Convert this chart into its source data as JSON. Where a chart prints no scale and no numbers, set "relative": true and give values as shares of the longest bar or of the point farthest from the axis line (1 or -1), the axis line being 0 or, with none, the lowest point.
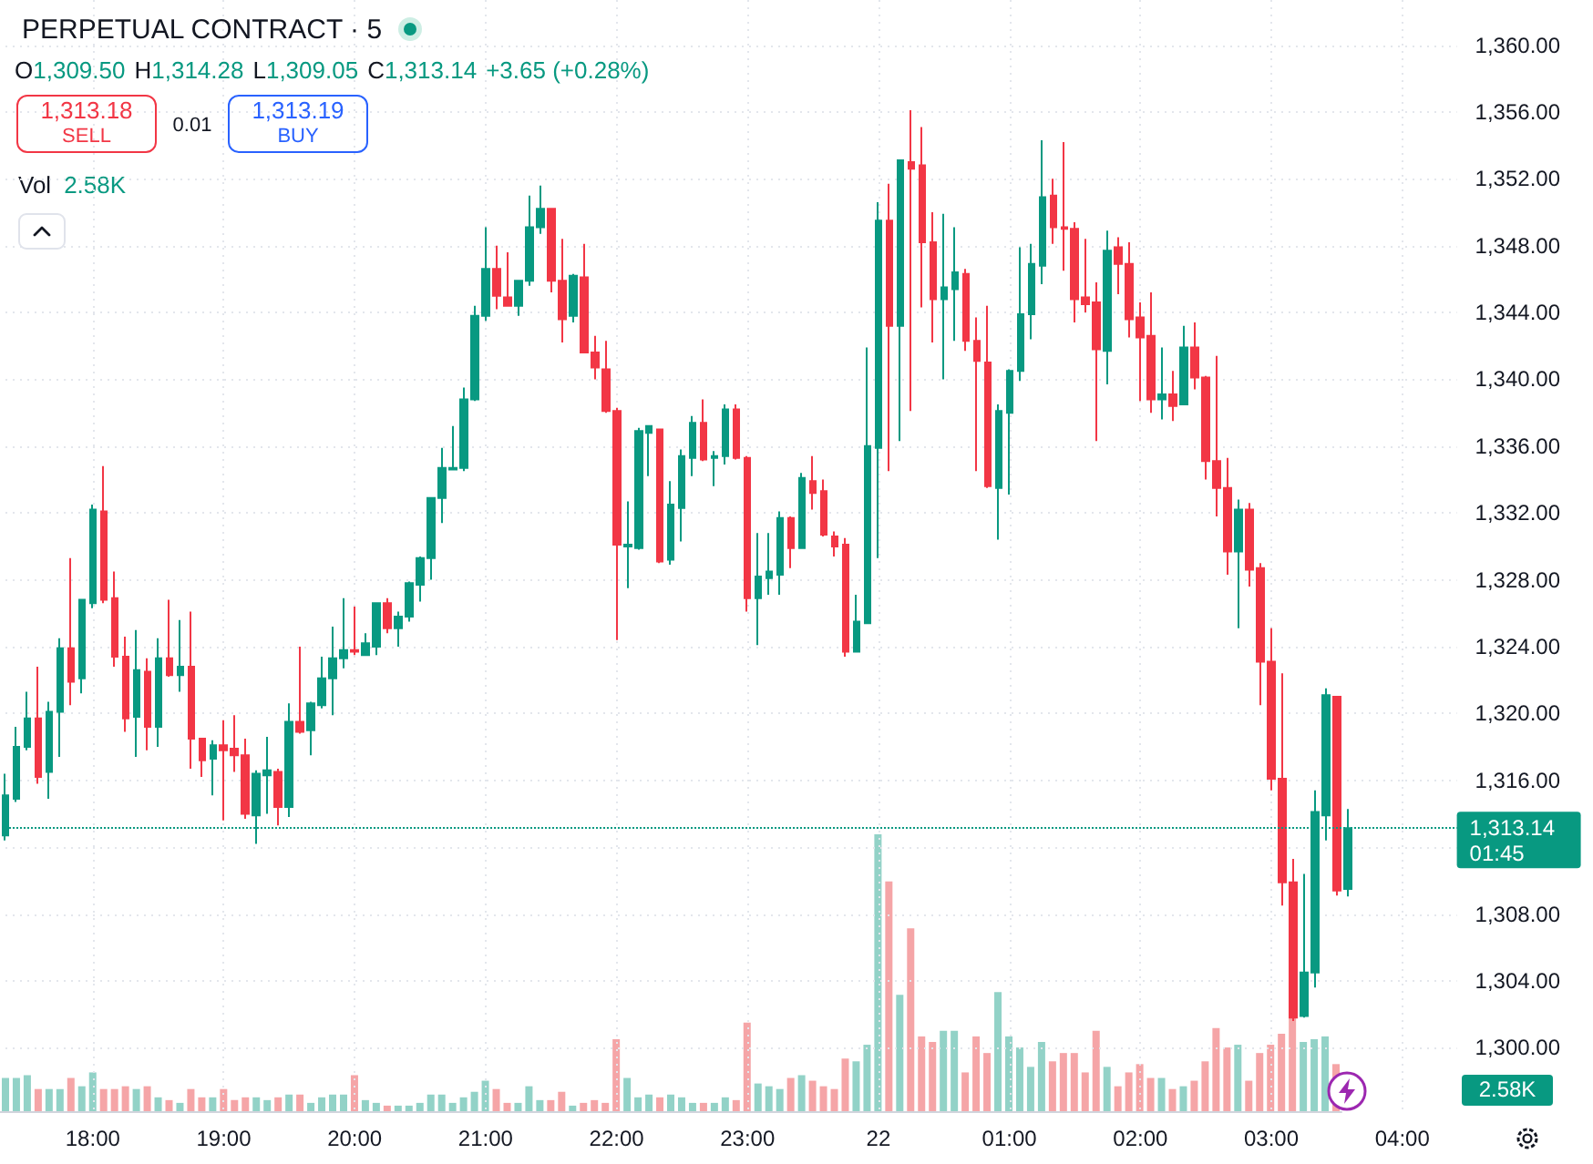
{
  "chart_data": [
    {
      "type": "candlestick",
      "title": "PERPETUAL CONTRACT · 5",
      "categories": [
        null,
        null,
        null,
        null,
        null,
        null,
        null,
        null,
        "18:00",
        null,
        null,
        null,
        null,
        null,
        null,
        null,
        null,
        null,
        null,
        null,
        "19:00",
        null,
        null,
        null,
        null,
        null,
        null,
        null,
        null,
        null,
        null,
        null,
        "20:00",
        null,
        null,
        null,
        null,
        null,
        null,
        null,
        null,
        null,
        null,
        null,
        "21:00",
        null,
        null,
        null,
        null,
        null,
        null,
        null,
        null,
        null,
        null,
        null,
        "22:00",
        null,
        null,
        null,
        null,
        null,
        null,
        null,
        null,
        null,
        null,
        null,
        "23:00",
        null,
        null,
        null,
        null,
        null,
        null,
        null,
        null,
        null,
        null,
        null,
        "22",
        null,
        null,
        null,
        null,
        null,
        null,
        null,
        null,
        null,
        null,
        null,
        "01:00",
        null,
        null,
        null,
        null,
        null,
        null,
        null,
        null,
        null,
        null,
        null,
        "02:00",
        null,
        null,
        null,
        null,
        null,
        null,
        null,
        null,
        null,
        null,
        null,
        "03:00",
        null,
        null,
        null,
        null,
        null,
        null,
        null,
        null,
        null,
        null,
        null,
        "04:00",
        null,
        null,
        null,
        null,
        null
      ],
      "ohlc": [
        [
          1312.7,
          1316.4,
          1312.4,
          1315.1
        ],
        [
          1314.9,
          1319.2,
          1314.7,
          1318.0
        ],
        [
          1318.0,
          1321.3,
          1317.8,
          1319.7
        ],
        [
          1319.7,
          1322.8,
          1315.8,
          1316.2
        ],
        [
          1316.5,
          1320.7,
          1314.9,
          1320.1
        ],
        [
          1320.1,
          1324.5,
          1317.4,
          1323.9
        ],
        [
          1323.9,
          1329.3,
          1320.5,
          1321.9
        ],
        [
          1322.1,
          1326.8,
          1321.2,
          1326.8
        ],
        [
          1326.6,
          1332.5,
          1326.3,
          1332.2
        ],
        [
          1332.1,
          1334.8,
          1326.6,
          1326.8
        ],
        [
          1326.9,
          1328.5,
          1322.8,
          1323.4
        ],
        [
          1323.4,
          1324.6,
          1318.9,
          1319.7
        ],
        [
          1319.8,
          1325.0,
          1317.4,
          1322.6
        ],
        [
          1322.5,
          1323.3,
          1317.8,
          1319.2
        ],
        [
          1319.2,
          1324.5,
          1318.0,
          1323.3
        ],
        [
          1323.3,
          1326.8,
          1322.2,
          1322.3
        ],
        [
          1322.3,
          1325.6,
          1321.3,
          1322.8
        ],
        [
          1322.8,
          1326.1,
          1316.7,
          1318.5
        ],
        [
          1318.5,
          1318.5,
          1316.2,
          1317.2
        ],
        [
          1317.3,
          1318.4,
          1315.1,
          1318.1
        ],
        [
          1318.1,
          1319.6,
          1313.6,
          1317.8
        ],
        [
          1317.9,
          1319.9,
          1316.5,
          1317.5
        ],
        [
          1317.5,
          1318.5,
          1313.7,
          1314.0
        ],
        [
          1313.9,
          1316.6,
          1312.2,
          1316.4
        ],
        [
          1316.3,
          1318.6,
          1314.0,
          1316.6
        ],
        [
          1316.5,
          1316.7,
          1313.3,
          1314.4
        ],
        [
          1314.4,
          1320.6,
          1313.8,
          1319.5
        ],
        [
          1319.5,
          1324.0,
          1318.8,
          1318.9
        ],
        [
          1319.0,
          1320.7,
          1317.5,
          1320.6
        ],
        [
          1320.5,
          1323.4,
          1320.3,
          1322.1
        ],
        [
          1322.1,
          1325.2,
          1319.9,
          1323.3
        ],
        [
          1323.3,
          1326.9,
          1322.7,
          1323.8
        ],
        [
          1323.8,
          1326.4,
          1323.5,
          1323.7
        ],
        [
          1323.5,
          1324.8,
          1323.5,
          1324.2
        ],
        [
          1324.0,
          1326.6,
          1323.5,
          1326.6
        ],
        [
          1326.6,
          1326.9,
          1324.8,
          1325.1
        ],
        [
          1325.1,
          1326.1,
          1324.0,
          1325.8
        ],
        [
          1325.8,
          1327.9,
          1325.5,
          1327.8
        ],
        [
          1327.7,
          1329.4,
          1326.7,
          1329.3
        ],
        [
          1329.3,
          1332.9,
          1328.0,
          1332.9
        ],
        [
          1332.9,
          1335.9,
          1331.4,
          1334.7
        ],
        [
          1334.6,
          1337.2,
          1334.6,
          1334.7
        ],
        [
          1334.7,
          1339.5,
          1334.5,
          1338.8
        ],
        [
          1338.8,
          1344.4,
          1338.7,
          1343.8
        ],
        [
          1343.8,
          1349.1,
          1343.5,
          1346.6
        ],
        [
          1346.6,
          1348.0,
          1344.2,
          1345.0
        ],
        [
          1344.9,
          1347.6,
          1344.4,
          1344.4
        ],
        [
          1344.4,
          1345.9,
          1343.8,
          1345.9
        ],
        [
          1345.9,
          1351.0,
          1345.6,
          1349.1
        ],
        [
          1349.1,
          1351.6,
          1348.7,
          1350.2
        ],
        [
          1350.2,
          1350.2,
          1345.2,
          1345.9
        ],
        [
          1345.9,
          1348.4,
          1342.2,
          1343.6
        ],
        [
          1343.8,
          1346.3,
          1343.4,
          1346.2
        ],
        [
          1346.1,
          1348.1,
          1341.6,
          1341.6
        ],
        [
          1341.6,
          1342.6,
          1340.0,
          1340.7
        ],
        [
          1340.6,
          1342.3,
          1338.0,
          1338.1
        ],
        [
          1338.1,
          1338.3,
          1324.4,
          1330.1
        ],
        [
          1330.0,
          1332.7,
          1327.5,
          1330.1
        ],
        [
          1329.9,
          1337.1,
          1329.8,
          1336.9
        ],
        [
          1336.8,
          1337.2,
          1334.2,
          1337.2
        ],
        [
          1337.0,
          1337.0,
          1329.0,
          1329.1
        ],
        [
          1329.2,
          1333.9,
          1328.9,
          1332.5
        ],
        [
          1332.3,
          1335.8,
          1330.3,
          1335.4
        ],
        [
          1335.3,
          1337.8,
          1334.2,
          1337.4
        ],
        [
          1337.4,
          1338.8,
          1335.1,
          1335.2
        ],
        [
          1335.3,
          1335.7,
          1333.6,
          1335.4
        ],
        [
          1335.4,
          1338.5,
          1334.9,
          1338.2
        ],
        [
          1338.2,
          1338.5,
          1335.2,
          1335.3
        ],
        [
          1335.3,
          1335.4,
          1326.1,
          1326.9
        ],
        [
          1326.9,
          1330.8,
          1324.1,
          1328.2
        ],
        [
          1328.1,
          1330.8,
          1327.1,
          1328.5
        ],
        [
          1328.3,
          1332.1,
          1327.1,
          1331.7
        ],
        [
          1331.7,
          1331.8,
          1328.7,
          1329.9
        ],
        [
          1329.9,
          1334.4,
          1329.9,
          1334.1
        ],
        [
          1333.9,
          1335.4,
          1332.2,
          1333.2
        ],
        [
          1333.3,
          1334.0,
          1330.6,
          1330.7
        ],
        [
          1330.6,
          1330.9,
          1329.4,
          1330.0
        ],
        [
          1330.1,
          1330.5,
          1323.4,
          1323.7
        ],
        [
          1323.7,
          1327.1,
          1323.7,
          1325.5
        ],
        [
          1325.4,
          1341.9,
          1325.4,
          1336.0
        ],
        [
          1335.9,
          1350.6,
          1329.3,
          1349.5
        ],
        [
          1349.5,
          1351.7,
          1334.5,
          1343.2
        ],
        [
          1343.2,
          1353.1,
          1336.3,
          1353.1
        ],
        [
          1353.0,
          1356.1,
          1338.1,
          1352.6
        ],
        [
          1352.8,
          1355.1,
          1344.3,
          1348.2
        ],
        [
          1348.2,
          1350.0,
          1342.2,
          1344.8
        ],
        [
          1344.8,
          1349.9,
          1340.0,
          1345.5
        ],
        [
          1345.4,
          1349.1,
          1342.3,
          1346.4
        ],
        [
          1346.3,
          1346.6,
          1341.7,
          1342.3
        ],
        [
          1342.3,
          1343.7,
          1334.5,
          1341.1
        ],
        [
          1341.0,
          1344.4,
          1333.5,
          1333.6
        ],
        [
          1333.5,
          1338.5,
          1330.4,
          1338.1
        ],
        [
          1338.0,
          1340.6,
          1333.1,
          1340.5
        ],
        [
          1340.5,
          1347.9,
          1339.9,
          1343.9
        ],
        [
          1343.9,
          1348.1,
          1342.4,
          1346.9
        ],
        [
          1346.8,
          1354.3,
          1345.7,
          1350.9
        ],
        [
          1351.0,
          1352.0,
          1348.1,
          1349.1
        ],
        [
          1349.1,
          1354.2,
          1346.5,
          1349.0
        ],
        [
          1349.0,
          1349.4,
          1343.4,
          1344.8
        ],
        [
          1344.9,
          1348.4,
          1344.0,
          1344.5
        ],
        [
          1344.6,
          1345.8,
          1336.3,
          1341.8
        ],
        [
          1341.7,
          1348.9,
          1339.7,
          1347.7
        ],
        [
          1347.9,
          1348.5,
          1345.1,
          1346.9
        ],
        [
          1346.9,
          1348.2,
          1342.5,
          1343.6
        ],
        [
          1343.7,
          1344.6,
          1338.7,
          1342.5
        ],
        [
          1342.6,
          1345.2,
          1338.0,
          1338.8
        ],
        [
          1338.8,
          1341.9,
          1337.6,
          1339.1
        ],
        [
          1339.1,
          1340.5,
          1337.5,
          1338.4
        ],
        [
          1338.5,
          1343.2,
          1338.5,
          1341.9
        ],
        [
          1341.9,
          1343.4,
          1339.4,
          1340.1
        ],
        [
          1340.1,
          1340.2,
          1334.0,
          1335.1
        ],
        [
          1335.1,
          1341.4,
          1331.8,
          1333.5
        ],
        [
          1333.5,
          1335.3,
          1328.3,
          1329.7
        ],
        [
          1329.7,
          1332.8,
          1325.1,
          1332.2
        ],
        [
          1332.2,
          1332.6,
          1327.6,
          1328.6
        ],
        [
          1328.7,
          1329.0,
          1320.5,
          1323.1
        ],
        [
          1323.1,
          1325.1,
          1315.4,
          1316.1
        ],
        [
          1316.1,
          1322.4,
          1308.5,
          1309.9
        ],
        [
          1309.9,
          1311.3,
          1301.6,
          1301.8
        ],
        [
          1301.9,
          1310.4,
          1301.8,
          1304.5
        ],
        [
          1304.5,
          1315.4,
          1303.6,
          1314.1
        ],
        [
          1313.9,
          1321.5,
          1312.4,
          1321.1
        ],
        [
          1321.0,
          1321.0,
          1309.1,
          1309.4
        ],
        [
          1309.5,
          1314.28,
          1309.05,
          1313.14
        ],
        null,
        null,
        null,
        null,
        null,
        null,
        null,
        null,
        null,
        null
      ],
      "colors": [
        "#089981",
        "#089981",
        "#089981",
        "#f23645",
        "#089981",
        "#089981",
        "#f23645",
        "#089981",
        "#089981",
        "#f23645",
        "#f23645",
        "#f23645",
        "#089981",
        "#f23645",
        "#089981",
        "#f23645",
        "#089981",
        "#f23645",
        "#f23645",
        "#089981",
        "#f23645",
        "#f23645",
        "#f23645",
        "#089981",
        "#089981",
        "#f23645",
        "#089981",
        "#f23645",
        "#089981",
        "#089981",
        "#089981",
        "#089981",
        "#f23645",
        "#089981",
        "#089981",
        "#f23645",
        "#089981",
        "#089981",
        "#089981",
        "#089981",
        "#089981",
        "#089981",
        "#089981",
        "#089981",
        "#089981",
        "#f23645",
        "#f23645",
        "#089981",
        "#089981",
        "#089981",
        "#f23645",
        "#f23645",
        "#089981",
        "#f23645",
        "#f23645",
        "#f23645",
        "#f23645",
        "#089981",
        "#089981",
        "#089981",
        "#f23645",
        "#089981",
        "#089981",
        "#089981",
        "#f23645",
        "#089981",
        "#089981",
        "#f23645",
        "#f23645",
        "#089981",
        "#089981",
        "#089981",
        "#f23645",
        "#089981",
        "#f23645",
        "#f23645",
        "#f23645",
        "#f23645",
        "#089981",
        "#089981",
        "#089981",
        "#f23645",
        "#089981",
        "#f23645",
        "#f23645",
        "#f23645",
        "#089981",
        "#089981",
        "#f23645",
        "#f23645",
        "#f23645",
        "#089981",
        "#089981",
        "#089981",
        "#089981",
        "#089981",
        "#f23645",
        "#f23645",
        "#f23645",
        "#f23645",
        "#f23645",
        "#089981",
        "#f23645",
        "#f23645",
        "#f23645",
        "#f23645",
        "#089981",
        "#f23645",
        "#089981",
        "#f23645",
        "#f23645",
        "#f23645",
        "#f23645",
        "#089981",
        "#f23645",
        "#f23645",
        "#f23645",
        "#f23645",
        "#f23645",
        "#089981",
        "#089981",
        "#089981",
        "#f23645",
        "#089981",
        null,
        null,
        null,
        null,
        null,
        null,
        null,
        null,
        null,
        null
      ],
      "ylim": [
        1296.2,
        1362.7
      ],
      "yticks": [
        {
          "value": 1300,
          "label": "1,300.00"
        },
        {
          "value": 1304,
          "label": "1,304.00"
        },
        {
          "value": 1308,
          "label": "1,308.00"
        },
        {
          "value": 1312,
          "label": null
        },
        {
          "value": 1316,
          "label": "1,316.00"
        },
        {
          "value": 1320,
          "label": "1,320.00"
        },
        {
          "value": 1324,
          "label": "1,324.00"
        },
        {
          "value": 1328,
          "label": "1,328.00"
        },
        {
          "value": 1332,
          "label": "1,332.00"
        },
        {
          "value": 1336,
          "label": "1,336.00"
        },
        {
          "value": 1340,
          "label": "1,340.00"
        },
        {
          "value": 1344,
          "label": "1,344.00"
        },
        {
          "value": 1348,
          "label": "1,348.00"
        },
        {
          "value": 1352,
          "label": "1,352.00"
        },
        {
          "value": 1356,
          "label": "1,356.00"
        },
        {
          "value": 1360,
          "label": "1,360.00"
        }
      ],
      "grid": true,
      "ref_lines": [
        {
          "axis": "y",
          "value": 1313.14,
          "label": "1,313.14",
          "color": "#089981",
          "line_style": "dotted"
        }
      ],
      "annotations": [
        "O1,309.50",
        "H1,314.28",
        "L1,309.05",
        "C1,313.14",
        "+3.65 (+0.28%)",
        "1,313.18",
        "SELL",
        "0.01",
        "1,313.19",
        "BUY",
        "01:45"
      ]
    },
    {
      "type": "bar",
      "categories": [
        null,
        null,
        null,
        null,
        null,
        null,
        null,
        null,
        null,
        null,
        null,
        null,
        null,
        null,
        null,
        null,
        null,
        null,
        null,
        null,
        null,
        null,
        null,
        null,
        null,
        null,
        null,
        null,
        null,
        null,
        null,
        null,
        null,
        null,
        null,
        null,
        null,
        null,
        null,
        null,
        null,
        null,
        null,
        null,
        null,
        null,
        null,
        null,
        null,
        null,
        null,
        null,
        null,
        null,
        null,
        null,
        null,
        null,
        null,
        null,
        null,
        null,
        null,
        null,
        null,
        null,
        null,
        null,
        null,
        null,
        null,
        null,
        null,
        null,
        null,
        null,
        null,
        null,
        null,
        null,
        null,
        null,
        null,
        null,
        null,
        null,
        null,
        null,
        null,
        null,
        null,
        null,
        null,
        null,
        null,
        null,
        null,
        null,
        null,
        null,
        null,
        null,
        null,
        null,
        null,
        null,
        null,
        null,
        null,
        null,
        null,
        null,
        null,
        null,
        null,
        null,
        null,
        null,
        null,
        null,
        null,
        null,
        null
      ],
      "values": [
        0.12,
        0.12,
        0.13,
        0.08,
        0.08,
        0.08,
        0.12,
        0.09,
        0.14,
        0.08,
        0.08,
        0.09,
        0.08,
        0.09,
        0.05,
        0.04,
        0.03,
        0.08,
        0.05,
        0.05,
        0.08,
        0.04,
        0.05,
        0.05,
        0.04,
        0.05,
        0.06,
        0.06,
        0.03,
        0.05,
        0.06,
        0.06,
        0.13,
        0.04,
        0.03,
        0.02,
        0.02,
        0.02,
        0.03,
        0.06,
        0.06,
        0.03,
        0.05,
        0.07,
        0.11,
        0.08,
        0.03,
        0.03,
        0.09,
        0.04,
        0.04,
        0.07,
        0.02,
        0.03,
        0.04,
        0.03,
        0.26,
        0.12,
        0.05,
        0.06,
        0.05,
        0.06,
        0.05,
        0.03,
        0.03,
        0.03,
        0.05,
        0.04,
        0.32,
        0.1,
        0.09,
        0.08,
        0.12,
        0.13,
        0.11,
        0.09,
        0.08,
        0.19,
        0.18,
        0.24,
        1,
        0.83,
        0.42,
        0.66,
        0.27,
        0.25,
        0.29,
        0.29,
        0.14,
        0.27,
        0.21,
        0.43,
        0.27,
        0.23,
        0.16,
        0.25,
        0.18,
        0.21,
        0.21,
        0.14,
        0.29,
        0.16,
        0.09,
        0.14,
        0.17,
        0.12,
        0.12,
        0.08,
        0.09,
        0.11,
        0.18,
        0.3,
        0.23,
        0.24,
        0.11,
        0.21,
        0.24,
        0.28,
        0.34,
        0.25,
        0.26,
        0.27,
        0.17
      ],
      "colors": [
        "#92d2c7",
        "#92d2c7",
        "#92d2c7",
        "#f5a5a7",
        "#92d2c7",
        "#92d2c7",
        "#f5a5a7",
        "#92d2c7",
        "#92d2c7",
        "#f5a5a7",
        "#f5a5a7",
        "#f5a5a7",
        "#92d2c7",
        "#f5a5a7",
        "#92d2c7",
        "#f5a5a7",
        "#92d2c7",
        "#f5a5a7",
        "#f5a5a7",
        "#92d2c7",
        "#f5a5a7",
        "#f5a5a7",
        "#f5a5a7",
        "#92d2c7",
        "#92d2c7",
        "#f5a5a7",
        "#92d2c7",
        "#f5a5a7",
        "#92d2c7",
        "#92d2c7",
        "#92d2c7",
        "#92d2c7",
        "#f5a5a7",
        "#92d2c7",
        "#92d2c7",
        "#f5a5a7",
        "#92d2c7",
        "#92d2c7",
        "#92d2c7",
        "#92d2c7",
        "#92d2c7",
        "#92d2c7",
        "#92d2c7",
        "#92d2c7",
        "#92d2c7",
        "#f5a5a7",
        "#f5a5a7",
        "#92d2c7",
        "#92d2c7",
        "#92d2c7",
        "#f5a5a7",
        "#f5a5a7",
        "#92d2c7",
        "#f5a5a7",
        "#f5a5a7",
        "#f5a5a7",
        "#f5a5a7",
        "#92d2c7",
        "#92d2c7",
        "#92d2c7",
        "#f5a5a7",
        "#92d2c7",
        "#92d2c7",
        "#92d2c7",
        "#f5a5a7",
        "#92d2c7",
        "#92d2c7",
        "#f5a5a7",
        "#f5a5a7",
        "#92d2c7",
        "#92d2c7",
        "#92d2c7",
        "#f5a5a7",
        "#92d2c7",
        "#f5a5a7",
        "#f5a5a7",
        "#f5a5a7",
        "#f5a5a7",
        "#92d2c7",
        "#92d2c7",
        "#92d2c7",
        "#f5a5a7",
        "#92d2c7",
        "#f5a5a7",
        "#f5a5a7",
        "#f5a5a7",
        "#92d2c7",
        "#92d2c7",
        "#f5a5a7",
        "#f5a5a7",
        "#f5a5a7",
        "#92d2c7",
        "#92d2c7",
        "#92d2c7",
        "#92d2c7",
        "#92d2c7",
        "#f5a5a7",
        "#f5a5a7",
        "#f5a5a7",
        "#f5a5a7",
        "#f5a5a7",
        "#92d2c7",
        "#f5a5a7",
        "#f5a5a7",
        "#f5a5a7",
        "#f5a5a7",
        "#92d2c7",
        "#f5a5a7",
        "#92d2c7",
        "#f5a5a7",
        "#f5a5a7",
        "#f5a5a7",
        "#f5a5a7",
        "#92d2c7",
        "#f5a5a7",
        "#f5a5a7",
        "#f5a5a7",
        "#f5a5a7",
        "#f5a5a7",
        "#92d2c7",
        "#92d2c7",
        "#92d2c7",
        "#f5a5a7"
      ],
      "relative": true,
      "annotations": [
        "Vol",
        "2.58K",
        "2.58K"
      ]
    }
  ]
}
